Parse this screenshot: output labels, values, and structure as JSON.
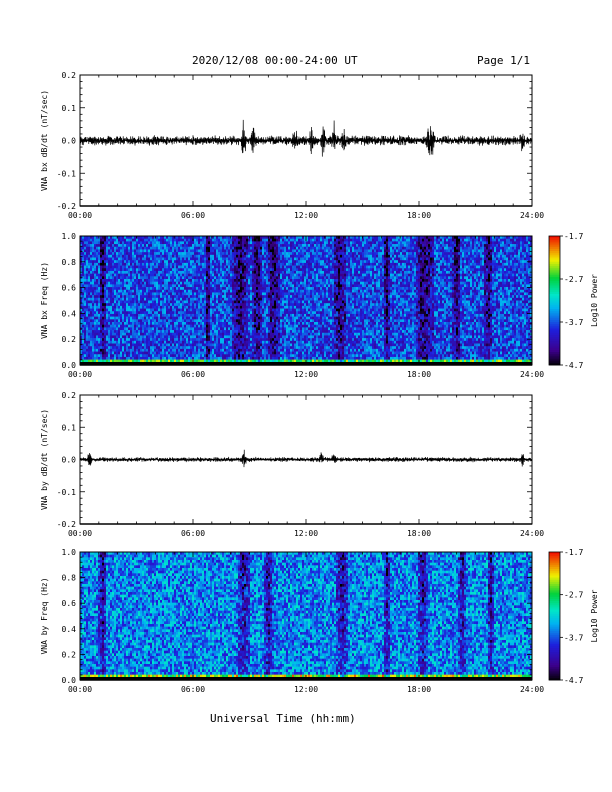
{
  "header": {
    "date_range": "2020/12/08  00:00-24:00 UT",
    "page": "Page 1/1"
  },
  "x_axis_title": "Universal Time (hh:mm)",
  "colors": {
    "trace": "#000000",
    "frame": "#000000"
  },
  "chart_data": [
    {
      "type": "line",
      "ylabel": "VNA bx dB/dt (nT/sec)",
      "ylim": [
        -0.2,
        0.2
      ],
      "yticks": [
        "0.2",
        "0.1",
        "0.0",
        "-0.1",
        "-0.2"
      ],
      "xlim": [
        0,
        24
      ],
      "xticks": [
        "00:00",
        "06:00",
        "12:00",
        "18:00",
        "24:00"
      ],
      "noise_amplitude": 0.012,
      "bursts": [
        {
          "t": 8.7,
          "amp": 0.05
        },
        {
          "t": 9.2,
          "amp": 0.035
        },
        {
          "t": 11.4,
          "amp": 0.03
        },
        {
          "t": 12.3,
          "amp": 0.035
        },
        {
          "t": 12.9,
          "amp": 0.04
        },
        {
          "t": 13.5,
          "amp": 0.045
        },
        {
          "t": 14.0,
          "amp": 0.03
        },
        {
          "t": 18.5,
          "amp": 0.05
        },
        {
          "t": 18.7,
          "amp": 0.04
        },
        {
          "t": 23.5,
          "amp": 0.02
        }
      ]
    },
    {
      "type": "heatmap",
      "ylabel": "VNA bx Freq (Hz)",
      "ylim": [
        0.0,
        1.0
      ],
      "yticks": [
        "1.0",
        "0.8",
        "0.6",
        "0.4",
        "0.2",
        "0.0"
      ],
      "xlim": [
        0,
        24
      ],
      "xticks": [
        "00:00",
        "06:00",
        "12:00",
        "18:00",
        "24:00"
      ],
      "colorbar": {
        "label": "Log10 Power",
        "ticks": [
          "-1.7",
          "-2.7",
          "-3.7",
          "-4.7"
        ],
        "range": [
          -4.7,
          -1.7
        ]
      },
      "baseline_level": -3.75,
      "dark_bands": [
        {
          "t": 1.2,
          "w": 0.35
        },
        {
          "t": 6.8,
          "w": 0.3
        },
        {
          "t": 8.5,
          "w": 0.8
        },
        {
          "t": 9.4,
          "w": 0.5
        },
        {
          "t": 10.3,
          "w": 0.6
        },
        {
          "t": 13.8,
          "w": 0.7
        },
        {
          "t": 16.3,
          "w": 0.3
        },
        {
          "t": 18.3,
          "w": 0.9
        },
        {
          "t": 20.0,
          "w": 0.4
        },
        {
          "t": 21.7,
          "w": 0.4
        }
      ]
    },
    {
      "type": "line",
      "ylabel": "VNA by dB/dt (nT/sec)",
      "ylim": [
        -0.2,
        0.2
      ],
      "yticks": [
        "0.2",
        "0.1",
        "0.0",
        "-0.1",
        "-0.2"
      ],
      "xlim": [
        0,
        24
      ],
      "xticks": [
        "00:00",
        "06:00",
        "12:00",
        "18:00",
        "24:00"
      ],
      "noise_amplitude": 0.006,
      "bursts": [
        {
          "t": 0.5,
          "amp": 0.02
        },
        {
          "t": 8.7,
          "amp": 0.02
        },
        {
          "t": 12.8,
          "amp": 0.02
        },
        {
          "t": 13.5,
          "amp": 0.018
        },
        {
          "t": 23.5,
          "amp": 0.015
        }
      ]
    },
    {
      "type": "heatmap",
      "ylabel": "VNA by Freq (Hz)",
      "ylim": [
        0.0,
        1.0
      ],
      "yticks": [
        "1.0",
        "0.8",
        "0.6",
        "0.4",
        "0.2",
        "0.0"
      ],
      "xlim": [
        0,
        24
      ],
      "xticks": [
        "00:00",
        "06:00",
        "12:00",
        "18:00",
        "24:00"
      ],
      "colorbar": {
        "label": "Log10 Power",
        "ticks": [
          "-1.7",
          "-2.7",
          "-3.7",
          "-4.7"
        ],
        "range": [
          -4.7,
          -1.7
        ]
      },
      "baseline_level": -3.5,
      "dark_bands": [
        {
          "t": 1.2,
          "w": 0.4
        },
        {
          "t": 8.7,
          "w": 0.6
        },
        {
          "t": 10.0,
          "w": 0.5
        },
        {
          "t": 13.9,
          "w": 0.6
        },
        {
          "t": 16.3,
          "w": 0.35
        },
        {
          "t": 18.2,
          "w": 0.5
        },
        {
          "t": 20.3,
          "w": 0.4
        },
        {
          "t": 21.8,
          "w": 0.35
        }
      ]
    }
  ]
}
